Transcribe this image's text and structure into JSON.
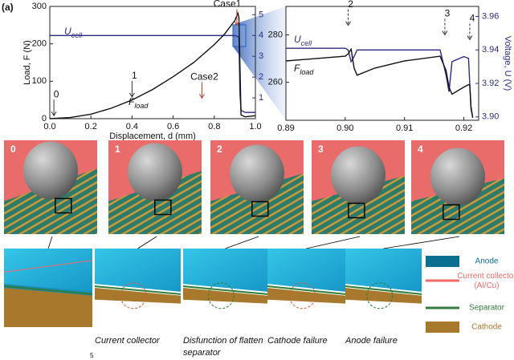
{
  "panel_label": "(a)",
  "chart_data": [
    {
      "type": "line",
      "x": [
        0,
        0.1,
        0.2,
        0.3,
        0.4,
        0.5,
        0.6,
        0.7,
        0.8,
        0.85,
        0.9,
        0.915,
        0.92,
        0.925,
        0.93,
        0.95,
        1.0
      ],
      "series": [
        {
          "name": "Ucell",
          "color": "#2b2b85",
          "axis": "y2",
          "values": [
            4,
            4,
            4,
            4,
            4,
            4,
            4,
            4,
            4,
            4,
            4,
            3.95,
            3.9,
            1.2,
            0.4,
            0.3,
            0.3
          ]
        },
        {
          "name": "Fload",
          "color": "#111111",
          "values": [
            0,
            3,
            12,
            28,
            50,
            78,
            112,
            150,
            198,
            226,
            262,
            282,
            270,
            140,
            10,
            5,
            8
          ]
        }
      ],
      "xlim": [
        0,
        1.0
      ],
      "xticks": [
        {
          "value": 0,
          "label": "0.0"
        },
        0.2,
        0.4,
        0.6,
        0.8,
        {
          "value": 1.0,
          "label": "1.0"
        }
      ],
      "ylim": [
        0,
        300
      ],
      "yticks": [
        0,
        100,
        200,
        300
      ],
      "y2lim": [
        0,
        5.4
      ],
      "y2ticks": [
        1,
        2,
        3,
        4,
        5
      ],
      "x_label": "Displacement, d (mm)",
      "y_label": "Load, F (N)",
      "annotations": [
        {
          "text": "0",
          "x": 0.02,
          "y": 8
        },
        {
          "text": "1",
          "x": 0.4,
          "y": 58
        },
        {
          "text": "Case2",
          "x": 0.74,
          "y": 55
        },
        {
          "text": "Case1",
          "x": 0.91,
          "y": 250
        }
      ]
    },
    {
      "type": "line",
      "x": [
        0.89,
        0.895,
        0.9,
        0.9005,
        0.901,
        0.9015,
        0.902,
        0.905,
        0.91,
        0.916,
        0.917,
        0.9175,
        0.918,
        0.92,
        0.9208,
        0.921,
        0.9212,
        0.9215
      ],
      "series": [
        {
          "name": "Ucell",
          "color": "#2b2b85",
          "axis": "y2",
          "values": [
            3.941,
            3.941,
            3.941,
            3.94,
            3.933,
            3.936,
            3.94,
            3.94,
            3.94,
            3.94,
            3.925,
            3.915,
            3.933,
            3.936,
            3.935,
            3.92,
            3.905,
            3.9
          ]
        },
        {
          "name": "Fload",
          "color": "#111111",
          "values": [
            269,
            270,
            271,
            272,
            274,
            266,
            263,
            266,
            269,
            271,
            265,
            258,
            255,
            258,
            259,
            259,
            250,
            245
          ]
        }
      ],
      "xlim": [
        0.89,
        0.9225
      ],
      "xticks": [
        0.89,
        {
          "value": 0.9,
          "label": "0.90"
        },
        0.91,
        0.92
      ],
      "ylim": [
        244,
        292
      ],
      "yticks": [
        260,
        280
      ],
      "y2lim": [
        3.898,
        3.966
      ],
      "y2ticks": [
        {
          "value": 3.9,
          "label": "3.90"
        },
        3.92,
        3.94,
        3.96
      ],
      "y2_label": "Voltage, U (V)",
      "annotations": [
        {
          "text": "2",
          "x": 0.9005,
          "y": 284
        },
        {
          "text": "3",
          "x": 0.9168,
          "y": 280
        },
        {
          "text": "4",
          "x": 0.921,
          "y": 278
        }
      ]
    }
  ],
  "snapshots": [
    "0",
    "1",
    "2",
    "3",
    "4"
  ],
  "closeup_captions": [
    "Current collector",
    "Disfunction of flatten separator",
    "Cathode failure",
    "Anode failure"
  ],
  "legend": [
    {
      "name": "Anode",
      "color": "#0b6f8f"
    },
    {
      "name": "Current collector (Al/Cu)",
      "color": "#f06a6a"
    },
    {
      "name": "Separator",
      "color": "#2f7d3b"
    },
    {
      "name": "Cathode",
      "color": "#a8782c"
    }
  ],
  "page_number": "5"
}
